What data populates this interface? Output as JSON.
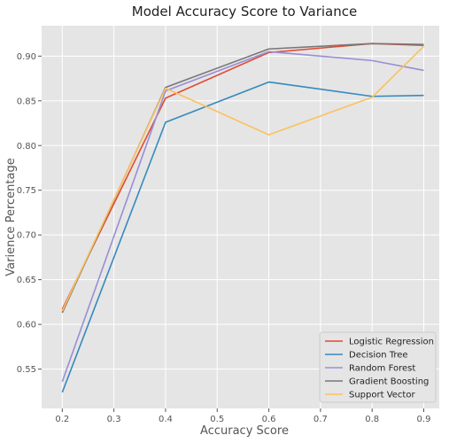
{
  "chart_data": {
    "type": "line",
    "title": "Model Accuracy Score to Variance",
    "xlabel": "Accuracy Score",
    "ylabel": "Varience Percentage",
    "x": [
      0.2,
      0.4,
      0.6,
      0.8,
      0.9
    ],
    "xlim": [
      0.16,
      0.93
    ],
    "ylim": [
      0.506,
      0.934
    ],
    "xticks": [
      0.2,
      0.3,
      0.4,
      0.5,
      0.6,
      0.7,
      0.8,
      0.9
    ],
    "xtick_labels": [
      "0.2",
      "0.3",
      "0.4",
      "0.5",
      "0.6",
      "0.7",
      "0.8",
      "0.9"
    ],
    "yticks": [
      0.55,
      0.6,
      0.65,
      0.7,
      0.75,
      0.8,
      0.85,
      0.9
    ],
    "ytick_labels": [
      "0.55",
      "0.60",
      "0.65",
      "0.70",
      "0.75",
      "0.80",
      "0.85",
      "0.90"
    ],
    "grid": true,
    "legend_position": "bottom-right",
    "series": [
      {
        "name": "Logistic Regression",
        "color": "#e24a33",
        "values": [
          0.617,
          0.853,
          0.904,
          0.914,
          0.912
        ]
      },
      {
        "name": "Decision Tree",
        "color": "#348abd",
        "values": [
          0.524,
          0.826,
          0.871,
          0.855,
          0.856
        ]
      },
      {
        "name": "Random Forest",
        "color": "#988ed5",
        "values": [
          0.536,
          0.861,
          0.905,
          0.895,
          0.884
        ]
      },
      {
        "name": "Gradient Boosting",
        "color": "#777777",
        "values": [
          0.613,
          0.865,
          0.908,
          0.914,
          0.913
        ]
      },
      {
        "name": "Support Vector",
        "color": "#fbc15e",
        "values": [
          0.615,
          0.864,
          0.812,
          0.854,
          0.911
        ]
      }
    ]
  }
}
